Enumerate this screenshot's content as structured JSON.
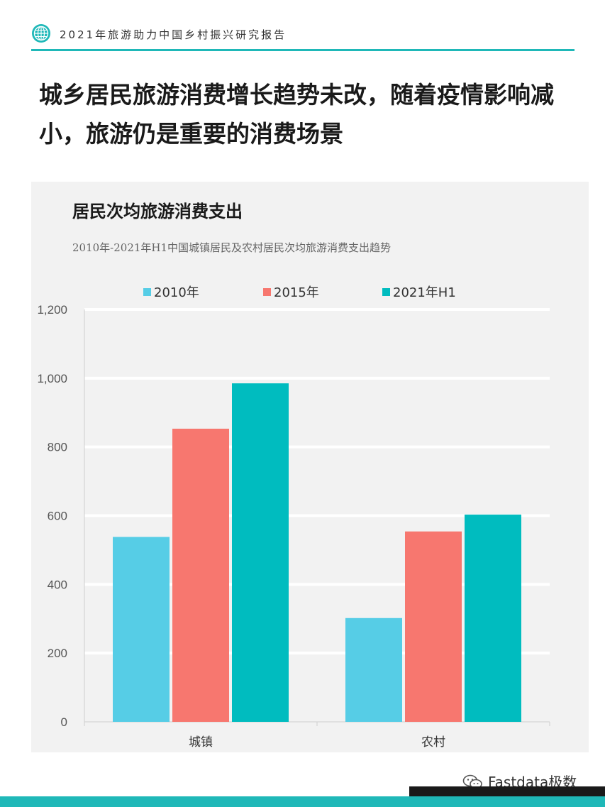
{
  "header": {
    "report_title": "2021年旅游助力中国乡村振兴研究报告",
    "logo_icon": "globe-icon",
    "accent_color": "#1fb8b8"
  },
  "headline": "城乡居民旅游消费增长趋势未改，随着疫情影响减小，旅游仍是重要的消费场景",
  "chart_data": {
    "type": "bar",
    "title": "居民次均旅游消费支出",
    "subtitle": "2010年-2021年H1中国城镇居民及农村居民次均旅游消费支出趋势",
    "categories": [
      "城镇",
      "农村"
    ],
    "series": [
      {
        "name": "2010年",
        "color": "#56cde6",
        "values": [
          538,
          302
        ]
      },
      {
        "name": "2015年",
        "color": "#f7776f",
        "values": [
          853,
          554
        ]
      },
      {
        "name": "2021年H1",
        "color": "#00bcbf",
        "values": [
          985,
          603
        ]
      }
    ],
    "yticks": [
      "0",
      "200",
      "400",
      "600",
      "800",
      "1,000",
      "1,200"
    ],
    "ylim": [
      0,
      1200
    ],
    "grid": true,
    "legend": "top"
  },
  "watermark": {
    "icon": "wechat-icon",
    "text": "Fastdata极数"
  }
}
